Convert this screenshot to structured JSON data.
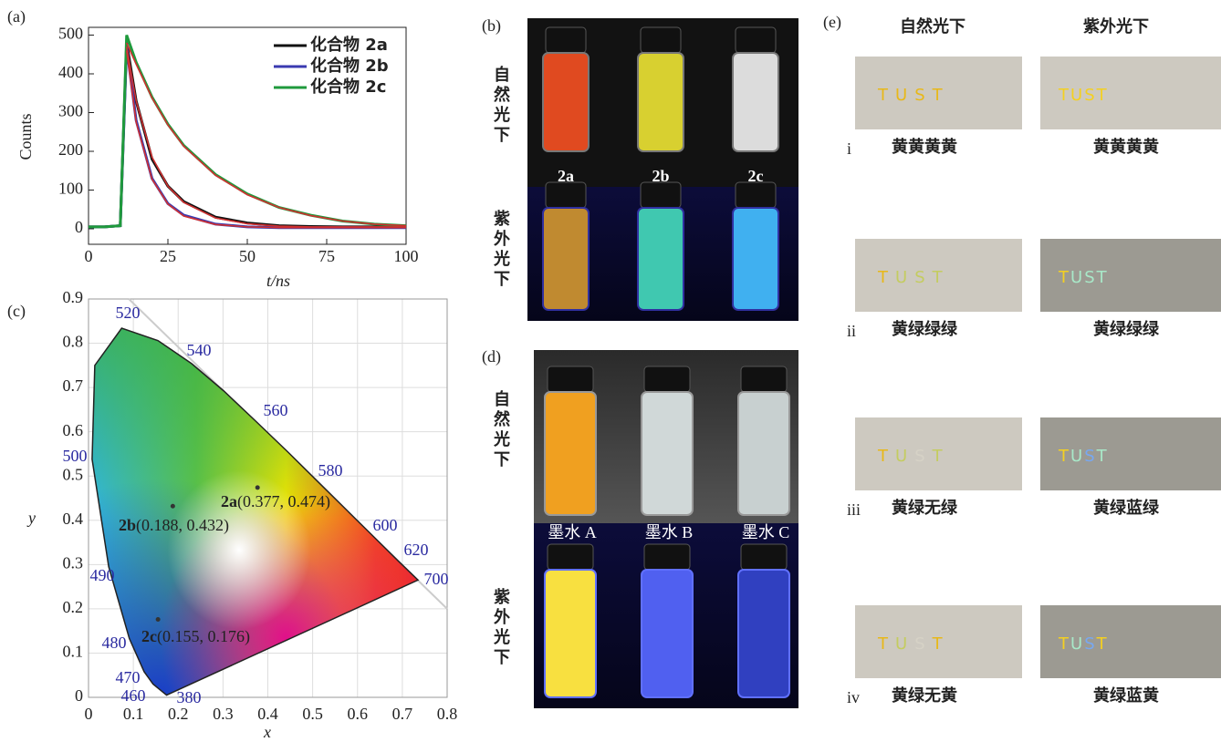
{
  "chart_data": [
    {
      "type": "line",
      "panel_label": "(a)",
      "x_label": "t/ns",
      "y_label": "Counts",
      "x": [
        0,
        5,
        10,
        12,
        15,
        20,
        25,
        30,
        40,
        50,
        60,
        70,
        80,
        90,
        100
      ],
      "xlim": [
        0,
        100
      ],
      "xticks": [
        0,
        25,
        50,
        75,
        100
      ],
      "ylim": [
        -40,
        520
      ],
      "yticks": [
        0,
        100,
        200,
        300,
        400,
        500
      ],
      "series": [
        {
          "name": "化合物 2a",
          "color": "#111111",
          "values": [
            5,
            5,
            8,
            480,
            330,
            180,
            110,
            70,
            30,
            15,
            8,
            6,
            5,
            5,
            5
          ]
        },
        {
          "name": "化合物 2b",
          "color": "#3a3ab0",
          "values": [
            5,
            5,
            8,
            470,
            280,
            130,
            65,
            35,
            12,
            5,
            3,
            3,
            3,
            3,
            3
          ]
        },
        {
          "name": "化合物 2c",
          "color": "#1f9a3c",
          "values": [
            5,
            5,
            8,
            500,
            430,
            340,
            270,
            215,
            140,
            90,
            55,
            35,
            20,
            12,
            8
          ]
        },
        {
          "color": "#d03030",
          "values": [
            null,
            null,
            null,
            470,
            330,
            185,
            110,
            68,
            28,
            13,
            7,
            5,
            5,
            5,
            5
          ]
        },
        {
          "color": "#d03030",
          "values": [
            null,
            null,
            null,
            460,
            275,
            128,
            64,
            33,
            11,
            5,
            3,
            3,
            3,
            3,
            3
          ]
        },
        {
          "color": "#d03030",
          "values": [
            null,
            null,
            null,
            480,
            425,
            338,
            268,
            213,
            138,
            88,
            55,
            34,
            20,
            12,
            8
          ]
        }
      ]
    },
    {
      "type": "scatter",
      "panel_label": "(c)",
      "x_label": "x",
      "y_label": "y",
      "xlim": [
        0,
        0.8
      ],
      "xticks": [
        0,
        0.1,
        0.2,
        0.3,
        0.4,
        0.5,
        0.6,
        0.7,
        0.8
      ],
      "ylim": [
        0,
        0.9
      ],
      "yticks": [
        0,
        0.1,
        0.2,
        0.3,
        0.4,
        0.5,
        0.6,
        0.7,
        0.8,
        0.9
      ],
      "grid": true,
      "x": [
        0.377,
        0.188,
        0.155
      ],
      "values": [
        0.474,
        0.432,
        0.176
      ],
      "point_names": [
        "2a",
        "2b",
        "2c"
      ],
      "value_labels": [
        "(0.377, 0.474)",
        "(0.188, 0.432)",
        "(0.155, 0.176)"
      ],
      "locus_wavelengths": [
        520,
        540,
        560,
        580,
        600,
        620,
        700,
        500,
        490,
        480,
        470,
        460,
        380
      ]
    }
  ],
  "panel_b": {
    "label": "(b)",
    "row_labels": [
      "自然光下",
      "紫外光下"
    ],
    "samples": [
      "2a",
      "2b",
      "2c"
    ]
  },
  "panel_d": {
    "label": "(d)",
    "row_labels": [
      "自然光下",
      "紫外光下"
    ],
    "inks": [
      "墨水 A",
      "墨水 B",
      "墨水 C"
    ]
  },
  "panel_e": {
    "label": "(e)",
    "column_headers": [
      "自然光下",
      "紫外光下"
    ],
    "letters": [
      "T",
      "U",
      "S",
      "T"
    ],
    "rows": [
      {
        "numeral": "i",
        "captions": [
          "黄黄黄黄",
          "黄黄黄黄"
        ]
      },
      {
        "numeral": "ii",
        "captions": [
          "黄绿绿绿",
          "黄绿绿绿"
        ]
      },
      {
        "numeral": "iii",
        "captions": [
          "黄绿无绿",
          "黄绿蓝绿"
        ]
      },
      {
        "numeral": "iv",
        "captions": [
          "黄绿无黄",
          "黄绿蓝黄"
        ]
      }
    ]
  }
}
